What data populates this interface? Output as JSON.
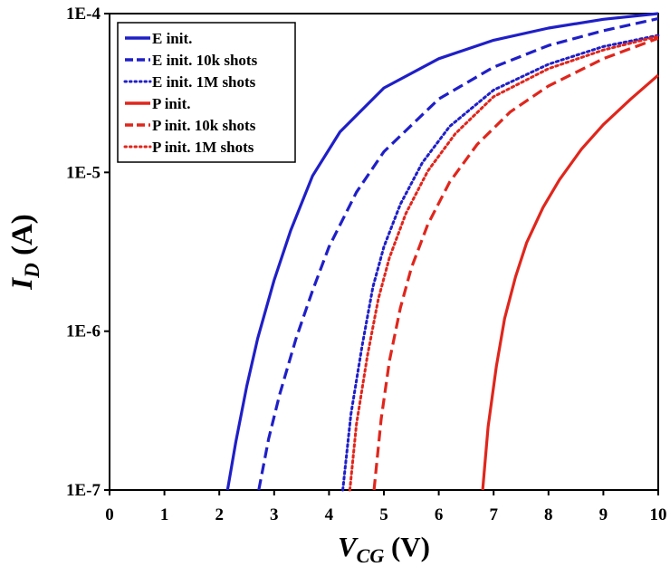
{
  "chart_data": {
    "type": "line",
    "title": "",
    "xlabel": {
      "main": "V",
      "sub": "CG",
      "unit": " (V)"
    },
    "ylabel": {
      "main": "I",
      "sub": "D",
      "unit": " (A)"
    },
    "xlim": [
      0,
      10
    ],
    "ylim": [
      1e-07,
      0.0001
    ],
    "yscale": "log",
    "grid": false,
    "legend_position": "top-left",
    "x_ticks": [
      "0",
      "1",
      "2",
      "3",
      "4",
      "5",
      "6",
      "7",
      "8",
      "9",
      "10"
    ],
    "y_ticks": [
      "1E-7",
      "1E-6",
      "1E-5",
      "1E-4"
    ],
    "series": [
      {
        "name": "E init.",
        "color": "#1f1fc8",
        "style": "solid",
        "x": [
          2.15,
          2.3,
          2.5,
          2.7,
          3.0,
          3.3,
          3.7,
          4.2,
          5.0,
          6.0,
          7.0,
          8.0,
          9.0,
          10.0
        ],
        "y": [
          1e-07,
          2e-07,
          4.5e-07,
          9e-07,
          2.1e-06,
          4.3e-06,
          9.5e-06,
          1.8e-05,
          3.4e-05,
          5.2e-05,
          6.8e-05,
          8.1e-05,
          9.2e-05,
          0.0001
        ]
      },
      {
        "name": "E init. 10k shots",
        "color": "#1f1fc8",
        "style": "dashed",
        "x": [
          2.72,
          2.9,
          3.1,
          3.4,
          3.7,
          4.0,
          4.5,
          5.0,
          6.0,
          7.0,
          8.0,
          9.0,
          10.0
        ],
        "y": [
          1e-07,
          2.1e-07,
          4e-07,
          9e-07,
          1.8e-06,
          3.4e-06,
          7.5e-06,
          1.35e-05,
          2.9e-05,
          4.6e-05,
          6.3e-05,
          7.8e-05,
          9.3e-05
        ]
      },
      {
        "name": "E init. 1M shots",
        "color": "#1f1fc8",
        "style": "dotted",
        "x": [
          4.25,
          4.4,
          4.6,
          4.8,
          5.0,
          5.3,
          5.7,
          6.2,
          7.0,
          8.0,
          9.0,
          10.0
        ],
        "y": [
          1e-07,
          3e-07,
          8e-07,
          1.9e-06,
          3.4e-06,
          6.3e-06,
          1.15e-05,
          1.95e-05,
          3.3e-05,
          4.8e-05,
          6.2e-05,
          7.3e-05
        ]
      },
      {
        "name": "P init.",
        "color": "#e0261c",
        "style": "solid",
        "x": [
          6.8,
          6.9,
          7.05,
          7.2,
          7.4,
          7.6,
          7.9,
          8.2,
          8.6,
          9.0,
          9.5,
          10.0
        ],
        "y": [
          1e-07,
          2.5e-07,
          6e-07,
          1.2e-06,
          2.2e-06,
          3.6e-06,
          6e-06,
          9e-06,
          1.4e-05,
          2e-05,
          2.9e-05,
          4.1e-05
        ]
      },
      {
        "name": "P init. 10k shots",
        "color": "#e0261c",
        "style": "dashed",
        "x": [
          4.82,
          4.95,
          5.1,
          5.3,
          5.5,
          5.8,
          6.2,
          6.7,
          7.3,
          8.0,
          9.0,
          10.0
        ],
        "y": [
          1e-07,
          2.8e-07,
          6.5e-07,
          1.4e-06,
          2.5e-06,
          4.7e-06,
          8.7e-06,
          1.5e-05,
          2.4e-05,
          3.5e-05,
          5.2e-05,
          7e-05
        ]
      },
      {
        "name": "P init. 1M shots",
        "color": "#e0261c",
        "style": "dotted",
        "x": [
          4.38,
          4.5,
          4.7,
          4.9,
          5.1,
          5.4,
          5.8,
          6.3,
          7.0,
          8.0,
          9.0,
          10.0
        ],
        "y": [
          1e-07,
          2.6e-07,
          7e-07,
          1.6e-06,
          2.9e-06,
          5.5e-06,
          1.02e-05,
          1.75e-05,
          3e-05,
          4.5e-05,
          5.9e-05,
          7.2e-05
        ]
      }
    ]
  }
}
